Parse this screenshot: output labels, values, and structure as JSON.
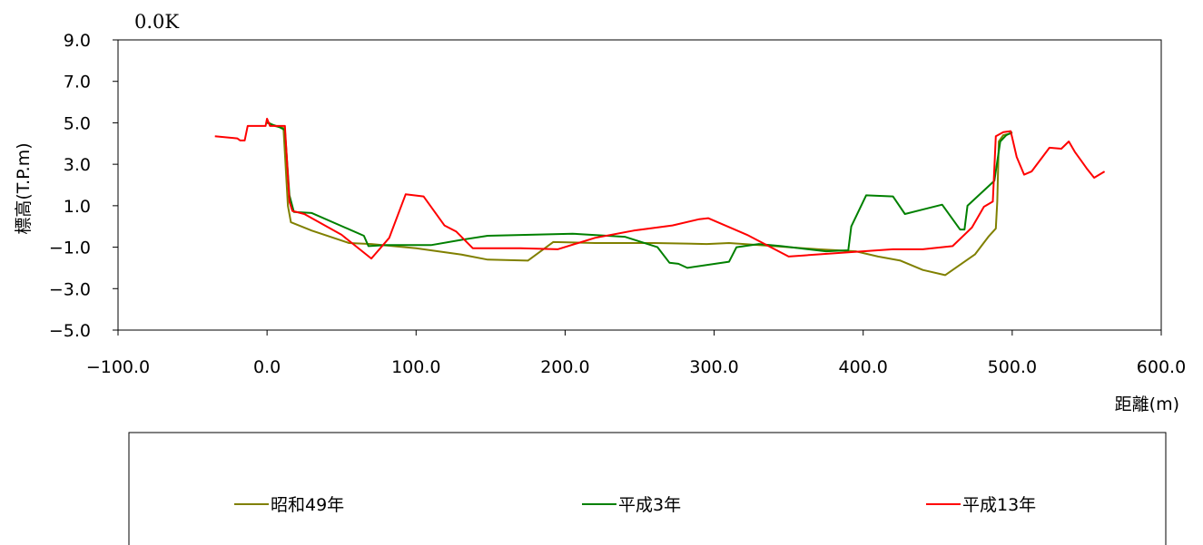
{
  "chart_data": {
    "type": "line",
    "title": "0.0K",
    "xlabel": "距離(m)",
    "ylabel": "標高(T.P.m)",
    "xlim": [
      -100,
      600
    ],
    "ylim": [
      -5,
      9
    ],
    "x_ticks": [
      "-100.0",
      "0.0",
      "100.0",
      "200.0",
      "300.0",
      "400.0",
      "500.0",
      "600.0"
    ],
    "y_ticks": [
      "9.0",
      "7.0",
      "5.0",
      "3.0",
      "1.0",
      "-1.0",
      "-3.0",
      "-5.0"
    ],
    "grid": false,
    "legend_position": "bottom",
    "series": [
      {
        "name": "昭和49年",
        "color": "#808000",
        "points": [
          [
            0,
            5.05
          ],
          [
            5,
            4.85
          ],
          [
            11,
            4.75
          ],
          [
            14,
            1.0
          ],
          [
            16,
            0.2
          ],
          [
            30,
            -0.2
          ],
          [
            55,
            -0.8
          ],
          [
            70,
            -0.85
          ],
          [
            100,
            -1.05
          ],
          [
            130,
            -1.35
          ],
          [
            148,
            -1.6
          ],
          [
            175,
            -1.65
          ],
          [
            192,
            -0.75
          ],
          [
            220,
            -0.8
          ],
          [
            245,
            -0.8
          ],
          [
            260,
            -0.8
          ],
          [
            295,
            -0.85
          ],
          [
            310,
            -0.8
          ],
          [
            340,
            -0.95
          ],
          [
            370,
            -1.1
          ],
          [
            395,
            -1.2
          ],
          [
            410,
            -1.45
          ],
          [
            425,
            -1.65
          ],
          [
            440,
            -2.1
          ],
          [
            455,
            -2.35
          ],
          [
            475,
            -1.35
          ],
          [
            484,
            -0.5
          ],
          [
            489,
            -0.1
          ],
          [
            490,
            1.2
          ],
          [
            491,
            4.1
          ],
          [
            494,
            4.4
          ],
          [
            497,
            4.45
          ],
          [
            500,
            4.5
          ]
        ]
      },
      {
        "name": "平成3年",
        "color": "#008000",
        "points": [
          [
            0,
            5.0
          ],
          [
            8,
            4.8
          ],
          [
            12,
            4.65
          ],
          [
            15,
            1.5
          ],
          [
            18,
            0.7
          ],
          [
            30,
            0.65
          ],
          [
            65,
            -0.45
          ],
          [
            68,
            -0.95
          ],
          [
            80,
            -0.9
          ],
          [
            110,
            -0.9
          ],
          [
            130,
            -0.65
          ],
          [
            148,
            -0.45
          ],
          [
            205,
            -0.35
          ],
          [
            240,
            -0.5
          ],
          [
            262,
            -1.0
          ],
          [
            270,
            -1.75
          ],
          [
            276,
            -1.8
          ],
          [
            282,
            -2.0
          ],
          [
            310,
            -1.7
          ],
          [
            315,
            -1.0
          ],
          [
            330,
            -0.85
          ],
          [
            345,
            -0.95
          ],
          [
            375,
            -1.2
          ],
          [
            390,
            -1.15
          ],
          [
            392,
            0.0
          ],
          [
            402,
            1.5
          ],
          [
            420,
            1.45
          ],
          [
            428,
            0.6
          ],
          [
            453,
            1.05
          ],
          [
            465,
            -0.15
          ],
          [
            468,
            -0.15
          ],
          [
            470,
            1.0
          ],
          [
            488,
            2.2
          ],
          [
            492,
            4.1
          ],
          [
            496,
            4.4
          ],
          [
            500,
            4.55
          ]
        ]
      },
      {
        "name": "平成13年",
        "color": "#ff0000",
        "points": [
          [
            -35,
            4.35
          ],
          [
            -20,
            4.25
          ],
          [
            -18,
            4.15
          ],
          [
            -15,
            4.15
          ],
          [
            -13,
            4.85
          ],
          [
            -5,
            4.85
          ],
          [
            -1,
            4.85
          ],
          [
            0,
            5.2
          ],
          [
            2,
            4.85
          ],
          [
            12,
            4.85
          ],
          [
            15,
            1.2
          ],
          [
            17,
            0.75
          ],
          [
            25,
            0.6
          ],
          [
            50,
            -0.4
          ],
          [
            70,
            -1.55
          ],
          [
            82,
            -0.55
          ],
          [
            93,
            1.55
          ],
          [
            105,
            1.45
          ],
          [
            119,
            0.05
          ],
          [
            127,
            -0.25
          ],
          [
            138,
            -1.05
          ],
          [
            170,
            -1.05
          ],
          [
            195,
            -1.1
          ],
          [
            220,
            -0.55
          ],
          [
            246,
            -0.2
          ],
          [
            272,
            0.05
          ],
          [
            290,
            0.35
          ],
          [
            296,
            0.4
          ],
          [
            322,
            -0.4
          ],
          [
            350,
            -1.45
          ],
          [
            360,
            -1.4
          ],
          [
            400,
            -1.2
          ],
          [
            420,
            -1.1
          ],
          [
            440,
            -1.1
          ],
          [
            460,
            -0.95
          ],
          [
            473,
            -0.05
          ],
          [
            481,
            0.95
          ],
          [
            487,
            1.2
          ],
          [
            489,
            4.35
          ],
          [
            494,
            4.55
          ],
          [
            499,
            4.6
          ],
          [
            503,
            3.35
          ],
          [
            508,
            2.5
          ],
          [
            513,
            2.65
          ],
          [
            525,
            3.8
          ],
          [
            533,
            3.75
          ],
          [
            538,
            4.1
          ],
          [
            542,
            3.6
          ],
          [
            546,
            3.2
          ],
          [
            550,
            2.8
          ],
          [
            555,
            2.35
          ],
          [
            562,
            2.65
          ]
        ]
      }
    ]
  }
}
